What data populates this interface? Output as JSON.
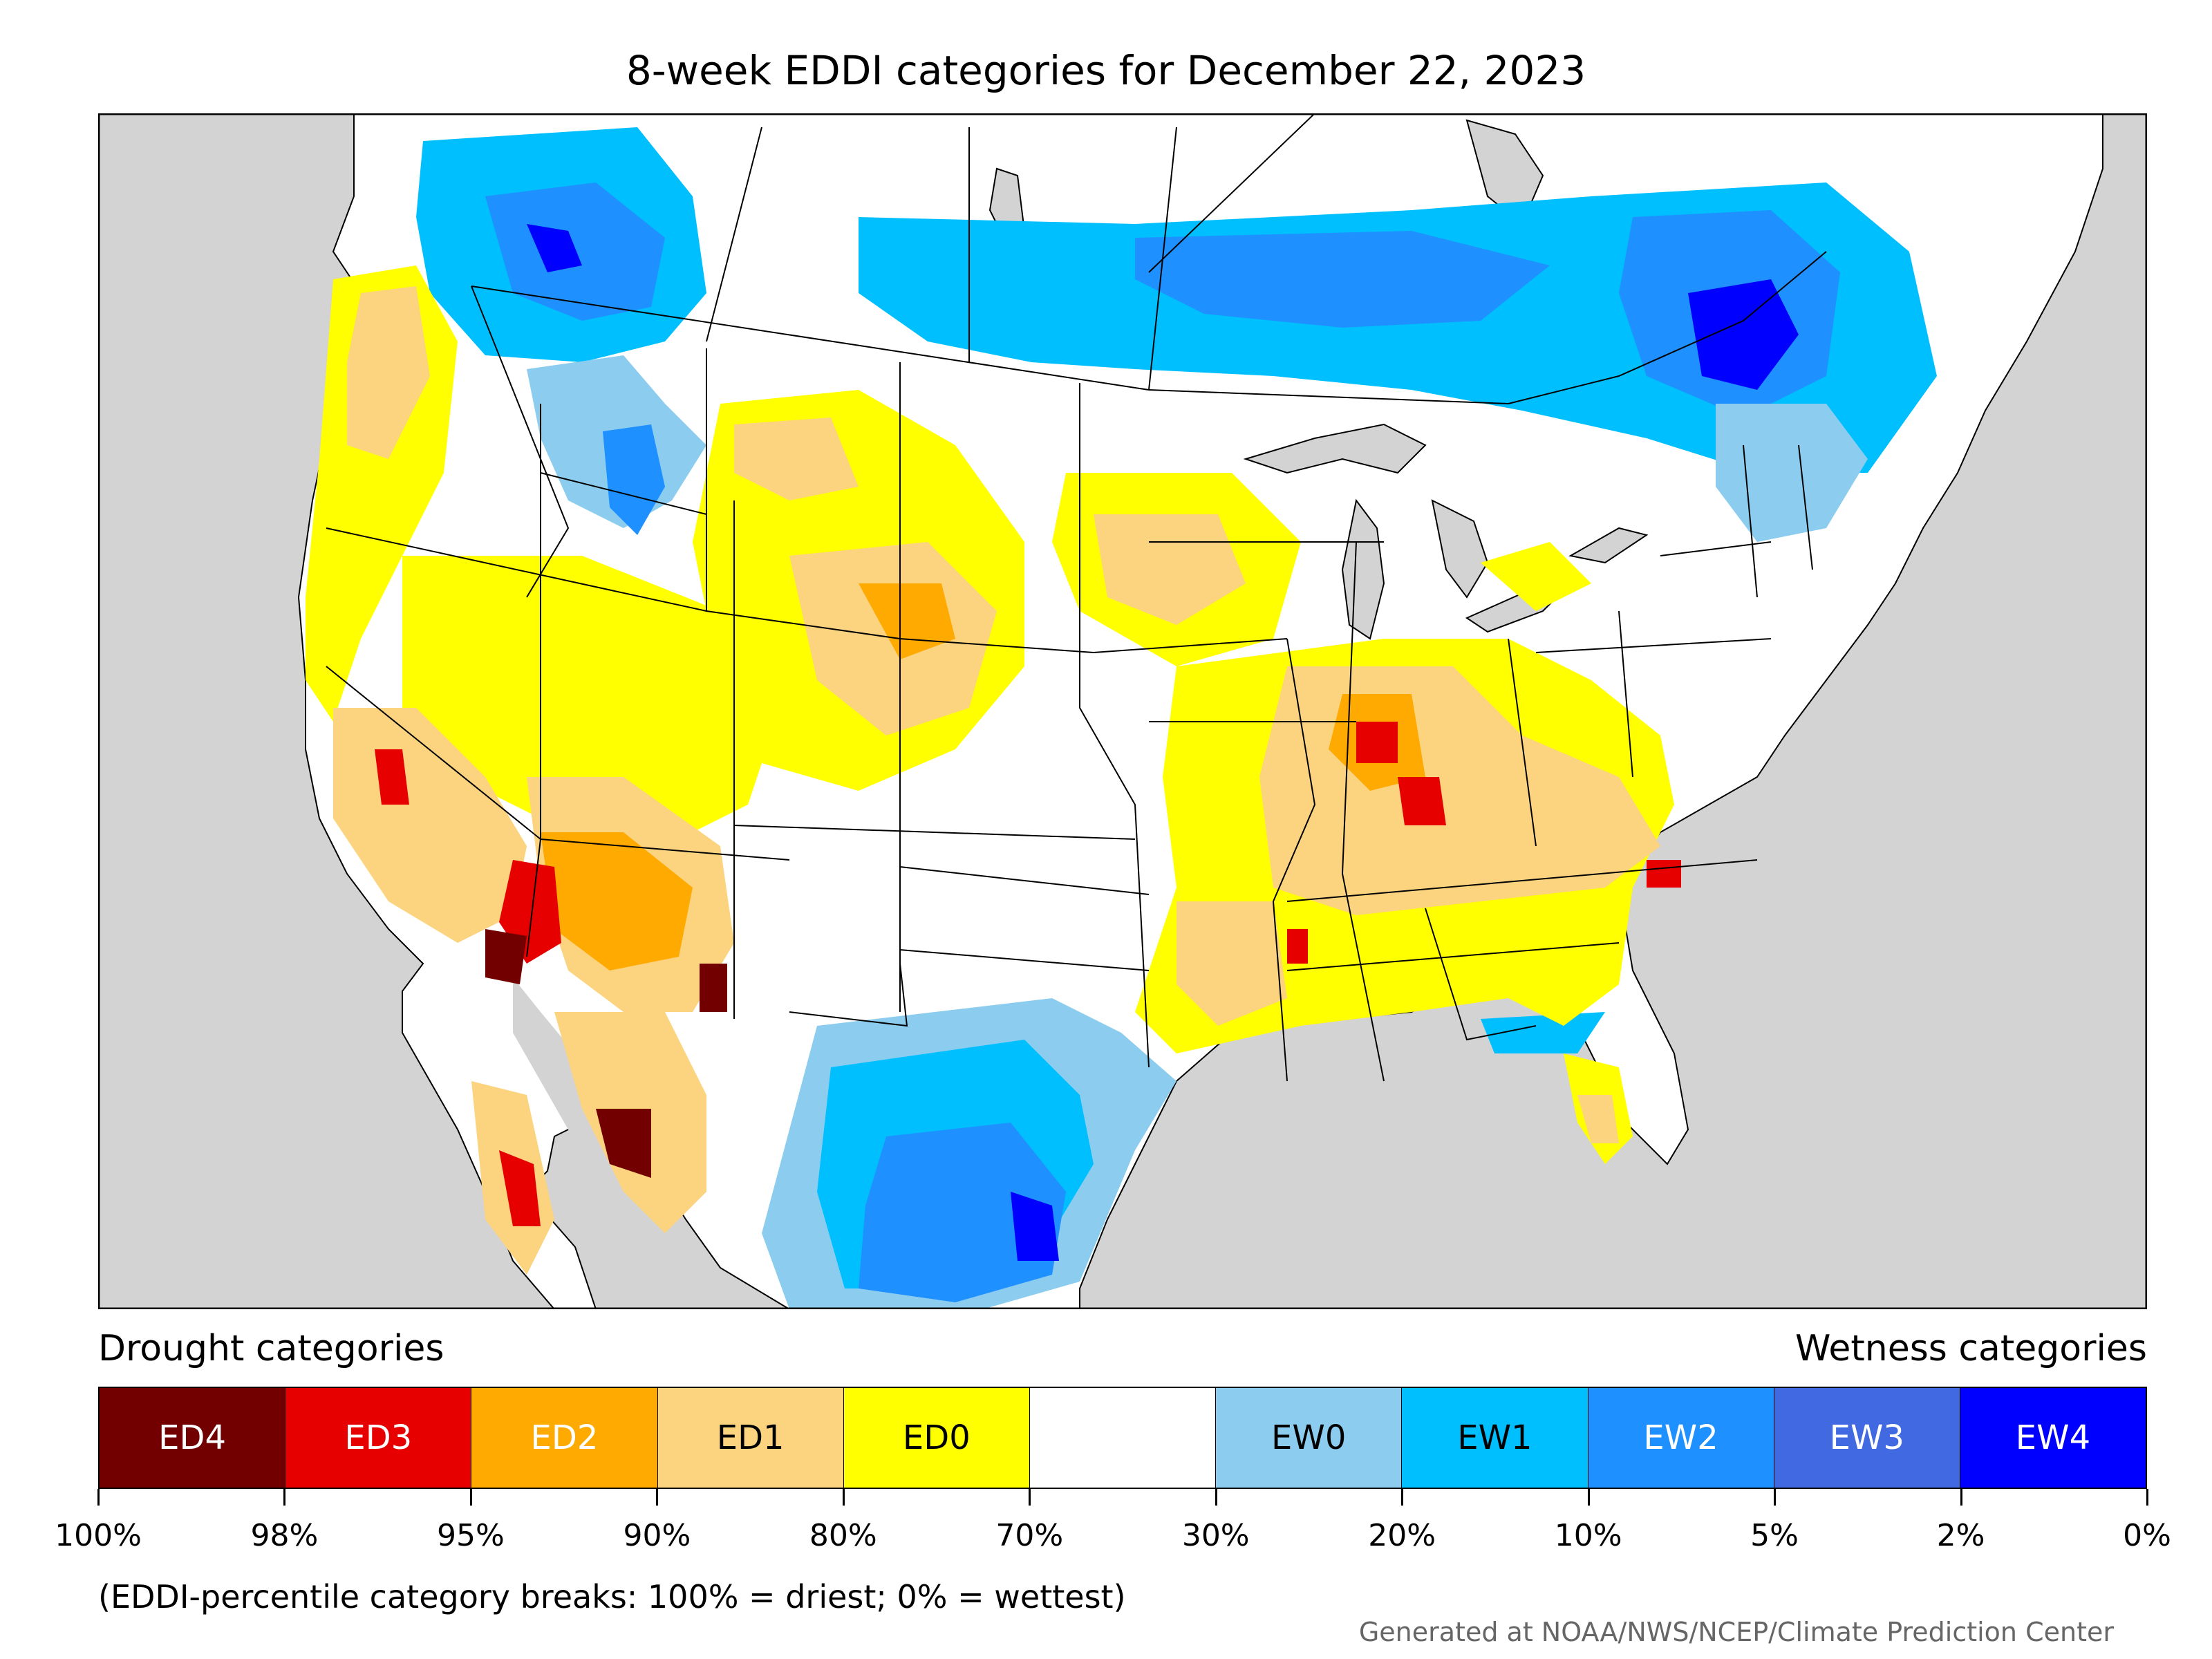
{
  "title": "8-week EDDI categories for December 22, 2023",
  "legend": {
    "drought_label": "Drought categories",
    "wetness_label": "Wetness categories",
    "categories": [
      {
        "label": "ED4",
        "color": "#730000",
        "text_color": "#ffffff"
      },
      {
        "label": "ED3",
        "color": "#e60000",
        "text_color": "#ffffff"
      },
      {
        "label": "ED2",
        "color": "#ffaa00",
        "text_color": "#ffffff"
      },
      {
        "label": "ED1",
        "color": "#fcd37f",
        "text_color": "#000000"
      },
      {
        "label": "ED0",
        "color": "#ffff00",
        "text_color": "#000000"
      },
      {
        "label": "",
        "color": "#ffffff",
        "text_color": "#000000"
      },
      {
        "label": "EW0",
        "color": "#8ccdef",
        "text_color": "#000000"
      },
      {
        "label": "EW1",
        "color": "#00bfff",
        "text_color": "#000000"
      },
      {
        "label": "EW2",
        "color": "#1e90ff",
        "text_color": "#ffffff"
      },
      {
        "label": "EW3",
        "color": "#4169e1",
        "text_color": "#ffffff"
      },
      {
        "label": "EW4",
        "color": "#0000ff",
        "text_color": "#ffffff"
      }
    ],
    "ticks": [
      "100%",
      "98%",
      "95%",
      "90%",
      "80%",
      "70%",
      "30%",
      "20%",
      "10%",
      "5%",
      "2%",
      "0%"
    ]
  },
  "note": "(EDDI-percentile category breaks: 100% = driest; 0% = wettest)",
  "credit": "Generated at NOAA/NWS/NCEP/Climate Prediction Center",
  "map": {
    "ocean_color": "#d3d3d3",
    "land_color": "#ffffff",
    "boundary_color": "#000000"
  }
}
